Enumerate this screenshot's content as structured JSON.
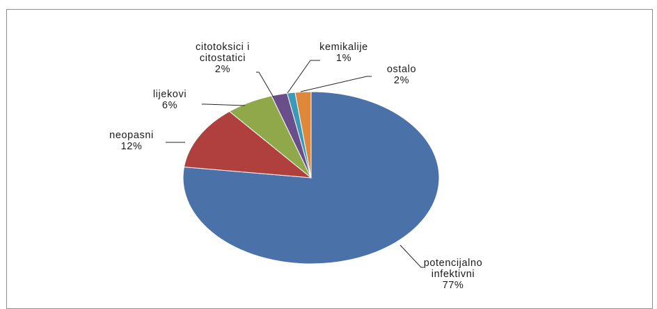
{
  "chart_data": {
    "type": "pie",
    "title": "",
    "slices": [
      {
        "label_lines": [
          "potencijalno",
          "infektivni"
        ],
        "value": 77,
        "value_label": "77%",
        "color": "#4a72a8"
      },
      {
        "label_lines": [
          "neopasni"
        ],
        "value": 12,
        "value_label": "12%",
        "color": "#b0403d"
      },
      {
        "label_lines": [
          "lijekovi"
        ],
        "value": 6,
        "value_label": "6%",
        "color": "#8ea84a"
      },
      {
        "label_lines": [
          "citotoksici i",
          "citostatici"
        ],
        "value": 2,
        "value_label": "2%",
        "color": "#6a4e8c"
      },
      {
        "label_lines": [
          "kemikalije"
        ],
        "value": 1,
        "value_label": "1%",
        "color": "#3a9ab8"
      },
      {
        "label_lines": [
          "ostalo"
        ],
        "value": 2,
        "value_label": "2%",
        "color": "#e0883a"
      }
    ],
    "legend": "none"
  }
}
